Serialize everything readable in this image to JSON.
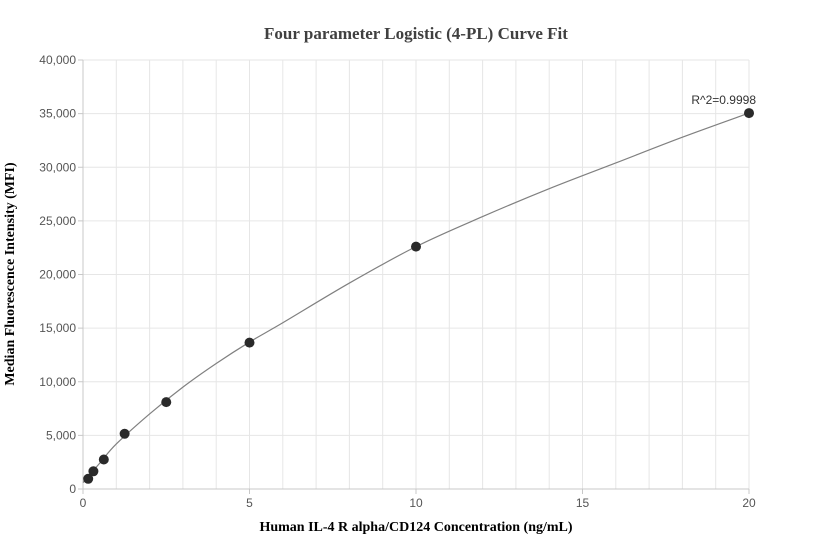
{
  "chart_data": {
    "type": "scatter",
    "title": "Four parameter Logistic (4-PL) Curve Fit",
    "xlabel": "Human IL-4 R alpha/CD124 Concentration (ng/mL)",
    "ylabel": "Median Fluorescence Intensity (MFI)",
    "xlim": [
      0,
      20
    ],
    "ylim": [
      0,
      40000
    ],
    "x_ticks": [
      0,
      5,
      10,
      15,
      20
    ],
    "x_tick_labels": [
      "0",
      "5",
      "10",
      "15",
      "20"
    ],
    "y_ticks": [
      0,
      5000,
      10000,
      15000,
      20000,
      25000,
      30000,
      35000,
      40000
    ],
    "y_tick_labels": [
      "0",
      "5,000",
      "10,000",
      "15,000",
      "20,000",
      "25,000",
      "30,000",
      "35,000",
      "40,000"
    ],
    "grid": true,
    "series": [
      {
        "x": [
          0.156,
          0.3125,
          0.625,
          1.25,
          2.5,
          5,
          10,
          20
        ],
        "y": [
          950,
          1650,
          2750,
          5150,
          8100,
          13650,
          22600,
          35050
        ]
      }
    ],
    "fit_curve": {
      "x": [
        0,
        0.5,
        1,
        2,
        3,
        4,
        5,
        6,
        8,
        10,
        12,
        14,
        16,
        18,
        20
      ],
      "y": [
        600,
        2400,
        4200,
        7000,
        9500,
        11700,
        13700,
        15500,
        19200,
        22600,
        25400,
        28000,
        30400,
        32800,
        35050
      ]
    },
    "annotation": {
      "text": "R^2=0.9998",
      "x": 20,
      "y": 35050
    },
    "colors": {
      "points": "#2a2a2a",
      "curve": "#808080",
      "grid": "#e6e6e6",
      "axis": "#c8c8c8"
    }
  }
}
